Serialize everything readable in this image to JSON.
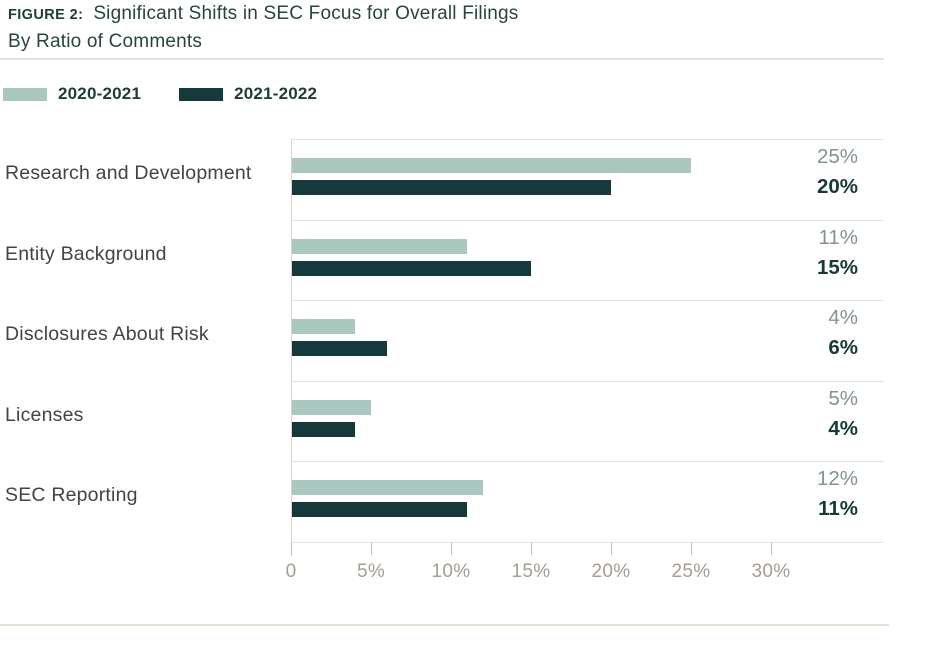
{
  "header": {
    "figure_label": "FIGURE 2:",
    "title": "Significant Shifts in SEC Focus for Overall Filings",
    "subtitle": "By Ratio of Comments"
  },
  "chart_data": {
    "type": "bar",
    "orientation": "horizontal",
    "title": "Significant Shifts in SEC Focus for Overall Filings",
    "subtitle": "By Ratio of Comments",
    "categories": [
      "Research and Development",
      "Entity Background",
      "Disclosures About Risk",
      "Licenses",
      "SEC Reporting"
    ],
    "series": [
      {
        "name": "2020-2021",
        "color": "#abc8c0",
        "values": [
          25,
          11,
          4,
          5,
          12
        ],
        "value_labels": [
          "25%",
          "11%",
          "4%",
          "5%",
          "12%"
        ]
      },
      {
        "name": "2021-2022",
        "color": "#16393b",
        "values": [
          20,
          15,
          6,
          4,
          11
        ],
        "value_labels": [
          "20%",
          "15%",
          "6%",
          "4%",
          "11%"
        ]
      }
    ],
    "x_axis": {
      "unit": "percent",
      "tick_labels": [
        "0",
        "5%",
        "10%",
        "15%",
        "20%",
        "25%",
        "30%"
      ],
      "tick_values": [
        0,
        5,
        10,
        15,
        20,
        25,
        30
      ],
      "range": [
        0,
        37
      ]
    },
    "legend_position": "top-left",
    "grid": "horizontal-row-separators"
  },
  "colors": {
    "series_2020_2021": "#abc8c0",
    "series_2021_2022": "#16393b",
    "title_text": "#27443f",
    "category_text": "#404542",
    "value_light_text": "#80948e",
    "value_dark_text": "#17393b",
    "axis_text": "#a49d91",
    "gridline": "#e9e4d8",
    "divider": "#e7e2d6"
  }
}
